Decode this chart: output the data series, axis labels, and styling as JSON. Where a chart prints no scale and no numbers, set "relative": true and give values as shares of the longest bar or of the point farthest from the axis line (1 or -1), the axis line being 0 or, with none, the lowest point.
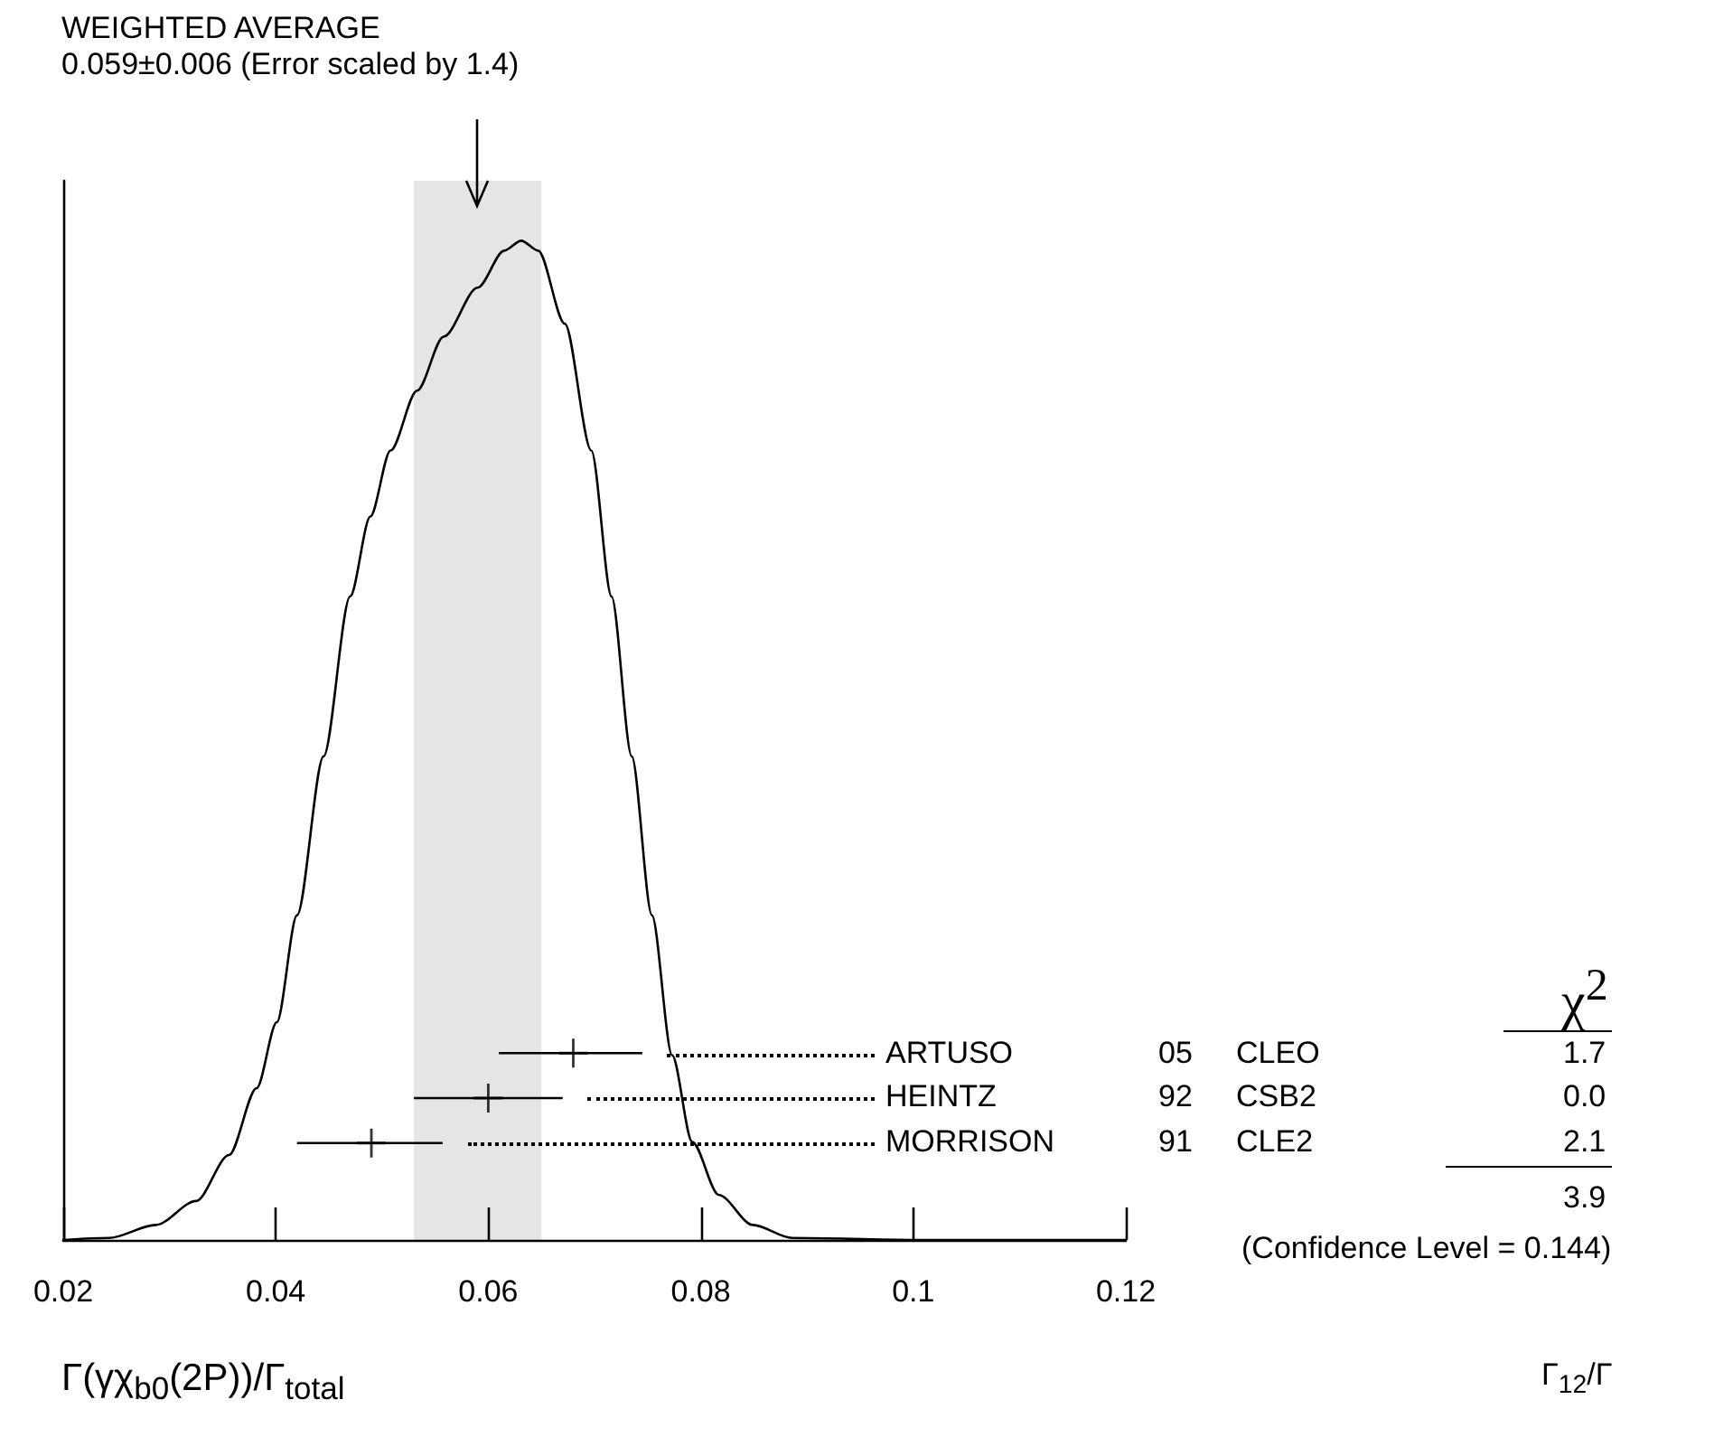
{
  "chart_data": {
    "type": "line",
    "xlabel": "Γ(γχ$_{b0}$(2P))/Γ$_{total}$",
    "relative": true,
    "xlim": [
      0.02,
      0.12
    ],
    "xticks": [
      0.02,
      0.04,
      0.06,
      0.08,
      0.1,
      0.12
    ],
    "tick_labels": "x",
    "grid": false,
    "marker": "none",
    "bands": [
      {
        "axis": "x",
        "from": 0.053,
        "to": 0.065,
        "color": "#e5e5e5"
      }
    ],
    "series": [
      {
        "color": "#000000",
        "x": [
          0.02,
          0.0243,
          0.0287,
          0.0325,
          0.0356,
          0.0382,
          0.0401,
          0.042,
          0.0445,
          0.047,
          0.0489,
          0.0508,
          0.0533,
          0.0558,
          0.059,
          0.0615,
          0.0631,
          0.0647,
          0.0672,
          0.0697,
          0.0716,
          0.0735,
          0.0754,
          0.0773,
          0.0792,
          0.0817,
          0.0849,
          0.0886,
          0.1,
          0.12
        ],
        "values": [
          0,
          0.002,
          0.015,
          0.039,
          0.085,
          0.152,
          0.218,
          0.325,
          0.484,
          0.644,
          0.724,
          0.79,
          0.85,
          0.904,
          0.953,
          0.99,
          1,
          0.99,
          0.917,
          0.79,
          0.644,
          0.484,
          0.325,
          0.185,
          0.098,
          0.045,
          0.015,
          0.002,
          0,
          0
        ]
      },
      {
        "type": "scatter",
        "color": "#000000",
        "marker": "cross",
        "x": [
          0.068,
          0.06,
          0.049
        ],
        "values": [
          0.187,
          0.142,
          0.097
        ],
        "xerrors": [
          [
            0.061,
            0.0745
          ],
          [
            0.053,
            0.067
          ],
          [
            0.042,
            0.0557
          ]
        ]
      }
    ],
    "annotations": [
      "WEIGHTED AVERAGE",
      "0.059±0.006 (Error scaled by 1.4)",
      "χ$^{2}$",
      "ARTUSO",
      "05",
      "CLEO",
      "1.7",
      "HEINTZ",
      "92",
      "CSB2",
      "0.0",
      "MORRISON",
      "91",
      "CLE2",
      "2.1",
      "3.9",
      "(Confidence Level = 0.144)",
      "Γ$_{12}$/Γ"
    ]
  }
}
